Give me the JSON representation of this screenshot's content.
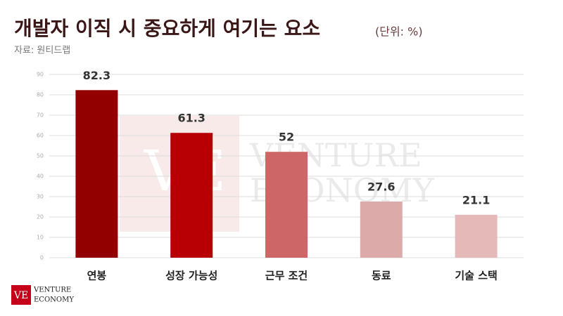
{
  "chart_data": {
    "type": "bar",
    "title": "개발자 이직 시 중요하게 여기는 요소",
    "subtitle": "(단위: %)",
    "source": "자료: 원티드랩",
    "categories": [
      "연봉",
      "성장 가능성",
      "근무 조건",
      "동료",
      "기술 스택"
    ],
    "values": [
      82.3,
      61.3,
      52,
      27.6,
      21.1
    ],
    "colors": [
      "#920000",
      "#b80004",
      "#cd6767",
      "#ddaaaa",
      "#e6b9b9"
    ],
    "ylim": [
      0,
      90
    ],
    "yticks": [
      0,
      10,
      20,
      30,
      40,
      50,
      60,
      70,
      80,
      90
    ],
    "grid": true
  },
  "logo": {
    "mark": "VE",
    "line1": "VENTURE",
    "line2": "ECONOMY"
  }
}
